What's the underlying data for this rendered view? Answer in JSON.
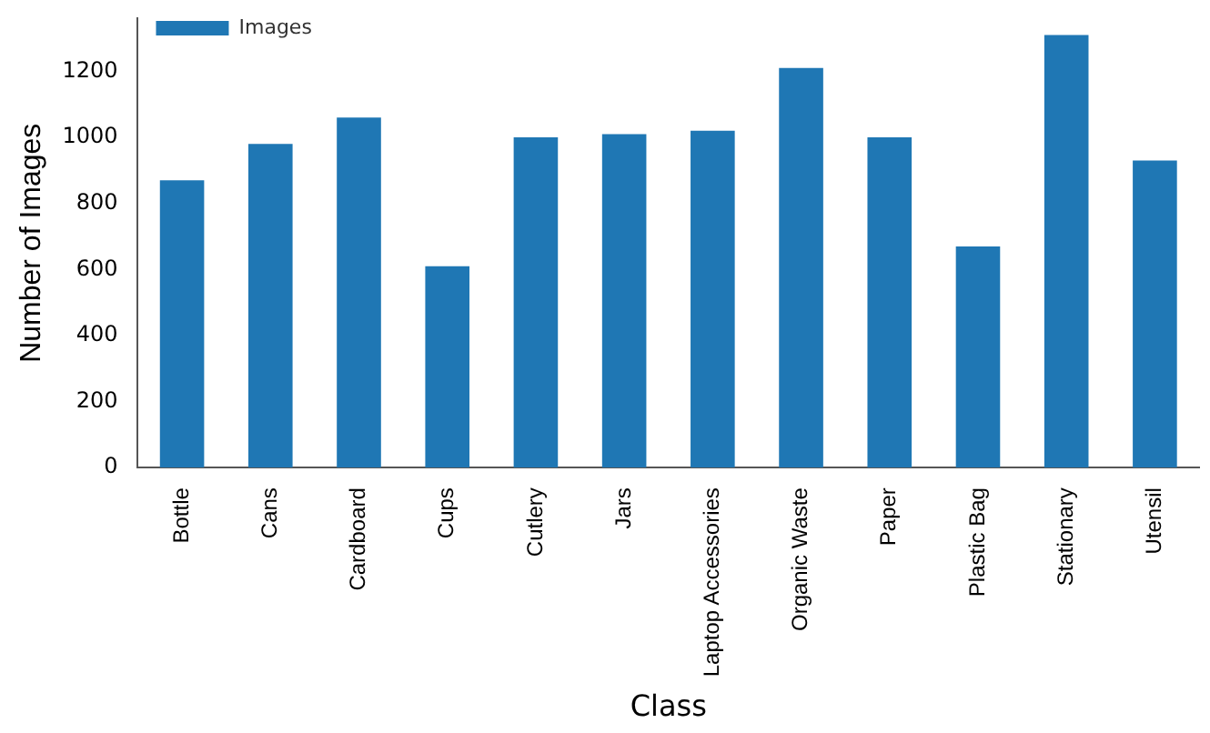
{
  "chart_data": {
    "type": "bar",
    "xlabel": "Class",
    "ylabel": "Number of Images",
    "categories": [
      "Bottle",
      "Cans",
      "Cardboard",
      "Cups",
      "Cutlery",
      "Jars",
      "Laptop Accessories",
      "Organic Waste",
      "Paper",
      "Plastic Bag",
      "Stationary",
      "Utensil"
    ],
    "series": [
      {
        "name": "Images",
        "color": "#1f77b4",
        "values": [
          870,
          980,
          1060,
          610,
          1000,
          1010,
          1020,
          1210,
          1000,
          670,
          1310,
          930
        ]
      }
    ],
    "ylim": [
      0,
      1360
    ],
    "yticks": [
      0,
      200,
      400,
      600,
      800,
      1000,
      1200
    ],
    "grid": false,
    "legend": "top left"
  }
}
